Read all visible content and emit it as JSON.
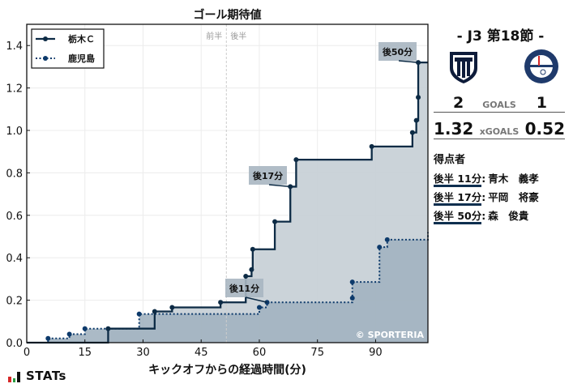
{
  "header": {
    "title": "ゴール期待値",
    "round": "-  J3 第18節  -"
  },
  "axes": {
    "xlabel": "キックオフからの経過時間(分)",
    "x_ticks": [
      "0",
      "15",
      "30",
      "45",
      "60",
      "75",
      "90"
    ],
    "y_ticks": [
      "0.0",
      "0.2",
      "0.4",
      "0.6",
      "0.8",
      "1.0",
      "1.2",
      "1.4"
    ],
    "half_labels": {
      "first": "前半",
      "second": "後半"
    }
  },
  "legend": {
    "home": "栃木Ｃ",
    "away": "鹿児島"
  },
  "watermark": "© SPORTERIA",
  "annotations": [
    {
      "label": "後11分"
    },
    {
      "label": "後17分"
    },
    {
      "label": "後50分"
    }
  ],
  "match": {
    "home": {
      "name": "栃木Ｃ",
      "goals": "2",
      "xg": "1.32",
      "crest": "tochigi-city-crest-icon"
    },
    "away": {
      "name": "鹿児島",
      "goals": "1",
      "xg": "0.52",
      "crest": "kagoshima-united-crest-icon"
    },
    "goals_label": "GOALS",
    "xgoals_label": "xGOALS"
  },
  "scorers": {
    "title": "得点者",
    "items": [
      {
        "time": "後半 11分",
        "name": "青木　義孝"
      },
      {
        "time": "後半 17分",
        "name": "平岡　将豪"
      },
      {
        "time": "後半 50分",
        "name": "森　俊貴"
      }
    ]
  },
  "footer": {
    "brand": "STATs"
  },
  "colors": {
    "home_line": "#0d2b45",
    "away_line": "#0d3a6b",
    "home_fill": "#c8d1d7",
    "away_fill": "#a2b2c0",
    "annotation_bg": "#a9b6c1",
    "half_line": "#cccccc"
  },
  "chart_data": {
    "type": "line",
    "subtype": "step-cumulative-xg",
    "title": "ゴール期待値",
    "xlabel": "キックオフからの経過時間(分)",
    "ylabel": "",
    "xlim": [
      0,
      103.5
    ],
    "ylim": [
      0,
      1.5
    ],
    "x_ticks": [
      0,
      15,
      30,
      45,
      60,
      75,
      90
    ],
    "y_ticks": [
      0.0,
      0.2,
      0.4,
      0.6,
      0.8,
      1.0,
      1.2,
      1.4
    ],
    "grid": true,
    "legend_position": "upper left",
    "half_time_x": 51.5,
    "series": [
      {
        "name": "栃木Ｃ",
        "style": "solid",
        "x": [
          0,
          21,
          33,
          37.5,
          50,
          56.5,
          58,
          58.3,
          64,
          68,
          69.5,
          89,
          99.5,
          100.5,
          101,
          101,
          103.5
        ],
        "y": [
          0,
          0.066,
          0.147,
          0.166,
          0.19,
          0.313,
          0.344,
          0.44,
          0.57,
          0.735,
          0.862,
          0.924,
          0.99,
          1.047,
          1.156,
          1.32,
          1.32
        ]
      },
      {
        "name": "鹿児島",
        "style": "dotted",
        "x": [
          0,
          5.5,
          11,
          15,
          29,
          60,
          62,
          84,
          84,
          91,
          93,
          103.5
        ],
        "y": [
          0,
          0.02,
          0.04,
          0.066,
          0.135,
          0.166,
          0.19,
          0.21,
          0.286,
          0.45,
          0.485,
          0.52
        ]
      }
    ],
    "annotations": [
      {
        "text": "後11分",
        "x": 62,
        "y": 0.19,
        "team": "鹿児島"
      },
      {
        "text": "後17分",
        "x": 68,
        "y": 0.735,
        "team": "栃木Ｃ"
      },
      {
        "text": "後50分",
        "x": 101,
        "y": 1.32,
        "team": "栃木Ｃ"
      }
    ]
  }
}
